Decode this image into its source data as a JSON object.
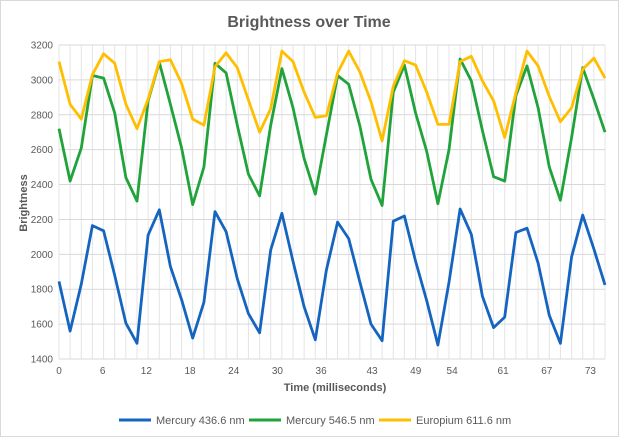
{
  "chart_data": {
    "type": "line",
    "title": "Brightness over Time",
    "xlabel": "Time (milliseconds)",
    "ylabel": "Brightness",
    "xlim": [
      0,
      75
    ],
    "ylim": [
      1400,
      3200
    ],
    "x_ticks": [
      "0",
      "6",
      "12",
      "18",
      "24",
      "30",
      "36",
      "43",
      "49",
      "54",
      "61",
      "67",
      "73"
    ],
    "y_ticks": [
      "1400",
      "1600",
      "1800",
      "2000",
      "2200",
      "2400",
      "2600",
      "2800",
      "3000",
      "3200"
    ],
    "grid": "vertical and horizontal",
    "legend_position": "bottom",
    "series": [
      {
        "name": "Mercury 436.6 nm",
        "color": "#1565c0",
        "values": [
          1845,
          1560,
          1830,
          2165,
          2135,
          1880,
          1605,
          1490,
          2110,
          2255,
          1930,
          1740,
          1520,
          1725,
          2245,
          2130,
          1860,
          1660,
          1550,
          2025,
          2235,
          1960,
          1700,
          1510,
          1910,
          2185,
          2090,
          1840,
          1600,
          1505,
          2190,
          2220,
          1960,
          1735,
          1480,
          1840,
          2260,
          2115,
          1760,
          1580,
          1640,
          2125,
          2150,
          1950,
          1650,
          1490,
          1985,
          2225,
          2030,
          1825
        ]
      },
      {
        "name": "Mercury 546.5 nm",
        "color": "#21a33b",
        "values": [
          2720,
          2420,
          2610,
          3025,
          3010,
          2810,
          2440,
          2305,
          2880,
          3100,
          2860,
          2610,
          2285,
          2500,
          3095,
          3040,
          2740,
          2460,
          2335,
          2740,
          3065,
          2840,
          2550,
          2345,
          2685,
          3025,
          2975,
          2735,
          2430,
          2280,
          2930,
          3085,
          2810,
          2590,
          2290,
          2600,
          3120,
          2995,
          2710,
          2445,
          2420,
          2910,
          3080,
          2840,
          2500,
          2310,
          2670,
          3070,
          2890,
          2700
        ]
      },
      {
        "name": "Europium 611.6 nm",
        "color": "#ffbf00",
        "values": [
          3105,
          2860,
          2775,
          3030,
          3150,
          3095,
          2860,
          2720,
          2890,
          3105,
          3115,
          2980,
          2775,
          2740,
          3075,
          3155,
          3070,
          2885,
          2700,
          2835,
          3165,
          3105,
          2930,
          2785,
          2795,
          3040,
          3165,
          3045,
          2875,
          2650,
          2965,
          3110,
          3085,
          2930,
          2745,
          2745,
          3105,
          3135,
          2995,
          2880,
          2670,
          2925,
          3165,
          3080,
          2905,
          2760,
          2840,
          3060,
          3125,
          3010
        ]
      }
    ]
  }
}
